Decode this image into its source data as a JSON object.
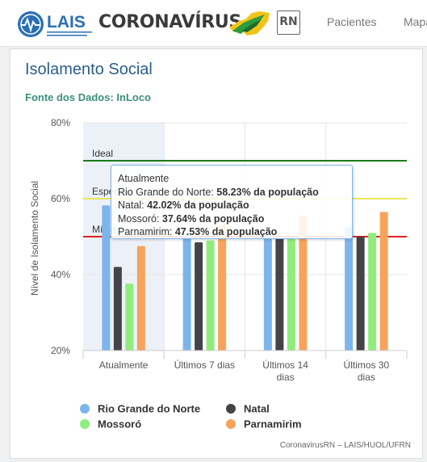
{
  "navbar": {
    "brand_text": "CORONAVÍRUS",
    "rn_badge": "RN",
    "lais_logo_text": "LAIS",
    "links": [
      "Pacientes",
      "Mapa"
    ]
  },
  "card": {
    "title": "Isolamento Social",
    "source": "Fonte dos Dados: InLoco",
    "credit": "CoronavirusRN – LAIS/HUOL/UFRN"
  },
  "tooltip": {
    "header": "Atualmente",
    "rows": [
      {
        "label": "Rio Grande do Norte:",
        "value": "58.23%",
        "suffix": " da população"
      },
      {
        "label": "Natal:",
        "value": "42.02%",
        "suffix": " da população"
      },
      {
        "label": "Mossoró:",
        "value": "37.64%",
        "suffix": " da população"
      },
      {
        "label": "Parnamirim:",
        "value": "47.53%",
        "suffix": " da população"
      }
    ]
  },
  "chart_data": {
    "type": "bar",
    "ylabel": "Nível de Isolamento Social",
    "ylim": [
      20,
      80
    ],
    "yticks": [
      "20%",
      "40%",
      "60%",
      "80%"
    ],
    "categories": [
      "Atualmente",
      "Últimos 7 dias",
      "Últimos 14 dias",
      "Últimos 30 dias"
    ],
    "category_lines": [
      [
        "Atualmente"
      ],
      [
        "Últimos 7 dias"
      ],
      [
        "Últimos 14",
        "dias"
      ],
      [
        "Últimos 30",
        "dias"
      ]
    ],
    "series": [
      {
        "name": "Rio Grande do Norte",
        "color": "#7cb5ec",
        "values": [
          58.23,
          50.5,
          50.5,
          52.5
        ]
      },
      {
        "name": "Natal",
        "color": "#434348",
        "values": [
          42.02,
          48.5,
          49.5,
          50.0
        ]
      },
      {
        "name": "Mossoró",
        "color": "#90ed7d",
        "values": [
          37.64,
          49.0,
          49.5,
          51.0
        ]
      },
      {
        "name": "Parnamirim",
        "color": "#f7a35c",
        "values": [
          47.53,
          53.0,
          55.5,
          56.5
        ]
      }
    ],
    "plot_lines": [
      {
        "label": "Ideal",
        "value": 70,
        "color": "#1a7a1a"
      },
      {
        "label": "Esperado",
        "value": 60,
        "color": "#e6e65a"
      },
      {
        "label": "Mínimo",
        "value": 50,
        "color": "#dd2222"
      }
    ],
    "highlighted_category": "Atualmente"
  }
}
